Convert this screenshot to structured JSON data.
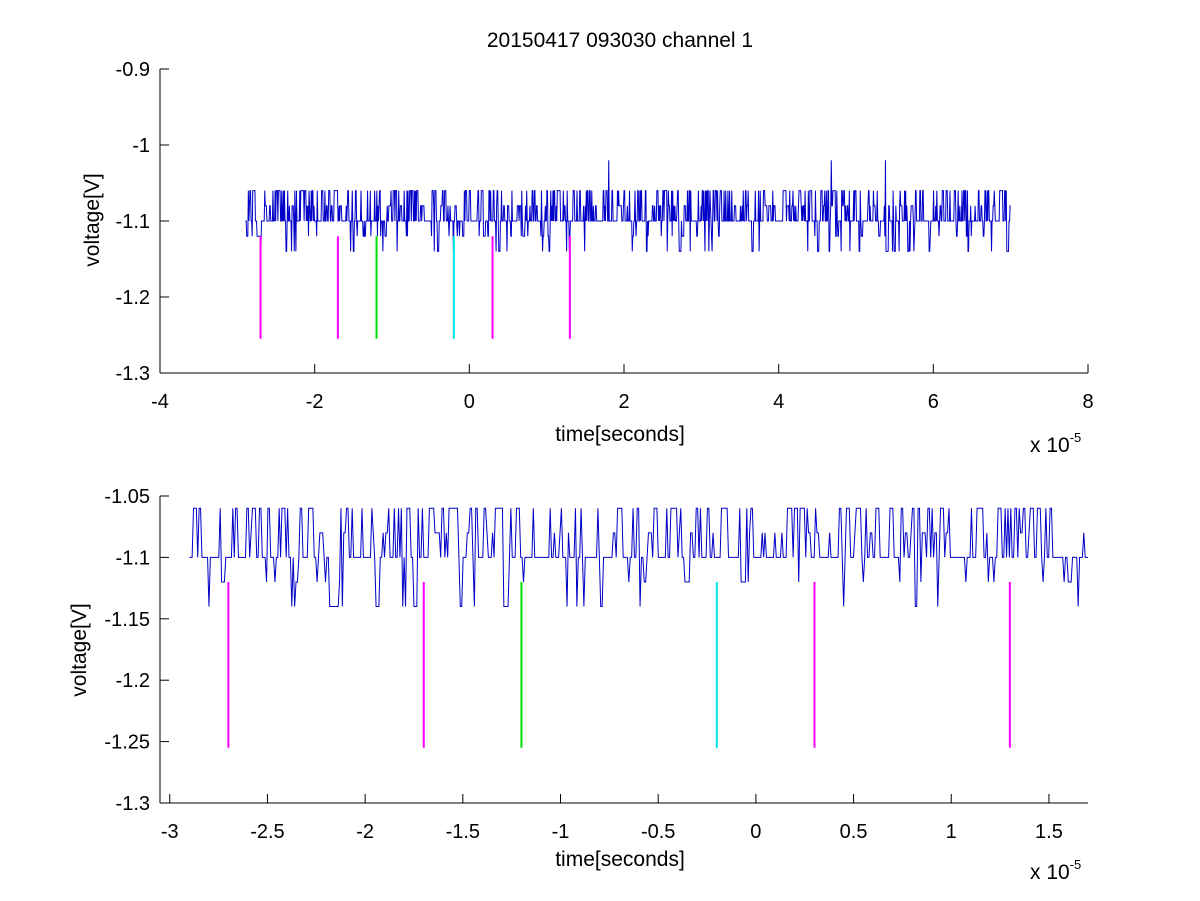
{
  "title": "20150417 093030 channel 1",
  "colors": {
    "signal": "#0000c8",
    "magenta_marker": "#ff00ff",
    "green_marker": "#00e000",
    "cyan_marker": "#00e6e6",
    "axis": "#000000"
  },
  "chart_data": [
    {
      "type": "line",
      "name": "full-view",
      "title": "20150417 093030 channel 1",
      "xlabel": "time[seconds]",
      "ylabel": "voltage[V]",
      "x_exponent_label": "x 10",
      "x_exponent": "-5",
      "x_scale": 1e-05,
      "xlim": [
        -4,
        8
      ],
      "ylim": [
        -1.3,
        -0.9
      ],
      "xticks": [
        -4,
        -2,
        0,
        2,
        4,
        6,
        8
      ],
      "xtick_labels": [
        "-4",
        "-2",
        "0",
        "2",
        "4",
        "6",
        "8"
      ],
      "yticks": [
        -1.3,
        -1.2,
        -1.1,
        -1,
        -0.9
      ],
      "ytick_labels": [
        "-1.3",
        "-1.2",
        "-1.1",
        "-1",
        "-0.9"
      ],
      "grid": false,
      "series": [
        {
          "signal": {
            "x_range": [
              -2.9,
              7.0
            ],
            "baseline": -1.1,
            "levels": [
              -1.14,
              -1.12,
              -1.1,
              -1.08,
              -1.06,
              -1.02
            ],
            "spikes": [
              {
                "x": 1.8,
                "y": -1.02
              },
              {
                "x": 4.68,
                "y": -1.02
              },
              {
                "x": 5.38,
                "y": -1.02
              }
            ]
          }
        }
      ],
      "markers": [
        {
          "x": -2.7,
          "y_top": -1.12,
          "y_bottom": -1.255,
          "color": "magenta"
        },
        {
          "x": -1.7,
          "y_top": -1.12,
          "y_bottom": -1.255,
          "color": "magenta"
        },
        {
          "x": -1.2,
          "y_top": -1.12,
          "y_bottom": -1.255,
          "color": "green"
        },
        {
          "x": -0.2,
          "y_top": -1.12,
          "y_bottom": -1.255,
          "color": "cyan"
        },
        {
          "x": 0.3,
          "y_top": -1.12,
          "y_bottom": -1.255,
          "color": "magenta"
        },
        {
          "x": 1.3,
          "y_top": -1.12,
          "y_bottom": -1.255,
          "color": "magenta"
        }
      ]
    },
    {
      "type": "line",
      "name": "zoomed-view",
      "xlabel": "time[seconds]",
      "ylabel": "voltage[V]",
      "x_exponent_label": "x 10",
      "x_exponent": "-5",
      "x_scale": 1e-05,
      "xlim": [
        -3.05,
        1.7
      ],
      "ylim": [
        -1.3,
        -1.05
      ],
      "xticks": [
        -3,
        -2.5,
        -2,
        -1.5,
        -1,
        -0.5,
        0,
        0.5,
        1,
        1.5
      ],
      "xtick_labels": [
        "-3",
        "-2.5",
        "-2",
        "-1.5",
        "-1",
        "-0.5",
        "0",
        "0.5",
        "1",
        "1.5"
      ],
      "yticks": [
        -1.3,
        -1.25,
        -1.2,
        -1.15,
        -1.1,
        -1.05
      ],
      "ytick_labels": [
        "-1.3",
        "-1.25",
        "-1.2",
        "-1.15",
        "-1.1",
        "-1.05"
      ],
      "grid": false,
      "series": [
        {
          "signal": {
            "x_range": [
              -2.9,
              1.7
            ],
            "baseline": -1.1,
            "levels": [
              -1.14,
              -1.12,
              -1.1,
              -1.08,
              -1.06
            ]
          }
        }
      ],
      "markers": [
        {
          "x": -2.7,
          "y_top": -1.12,
          "y_bottom": -1.255,
          "color": "magenta"
        },
        {
          "x": -1.7,
          "y_top": -1.12,
          "y_bottom": -1.255,
          "color": "magenta"
        },
        {
          "x": -1.2,
          "y_top": -1.12,
          "y_bottom": -1.255,
          "color": "green"
        },
        {
          "x": -0.2,
          "y_top": -1.12,
          "y_bottom": -1.255,
          "color": "cyan"
        },
        {
          "x": 0.3,
          "y_top": -1.12,
          "y_bottom": -1.255,
          "color": "magenta"
        },
        {
          "x": 1.3,
          "y_top": -1.12,
          "y_bottom": -1.255,
          "color": "magenta"
        }
      ]
    }
  ]
}
